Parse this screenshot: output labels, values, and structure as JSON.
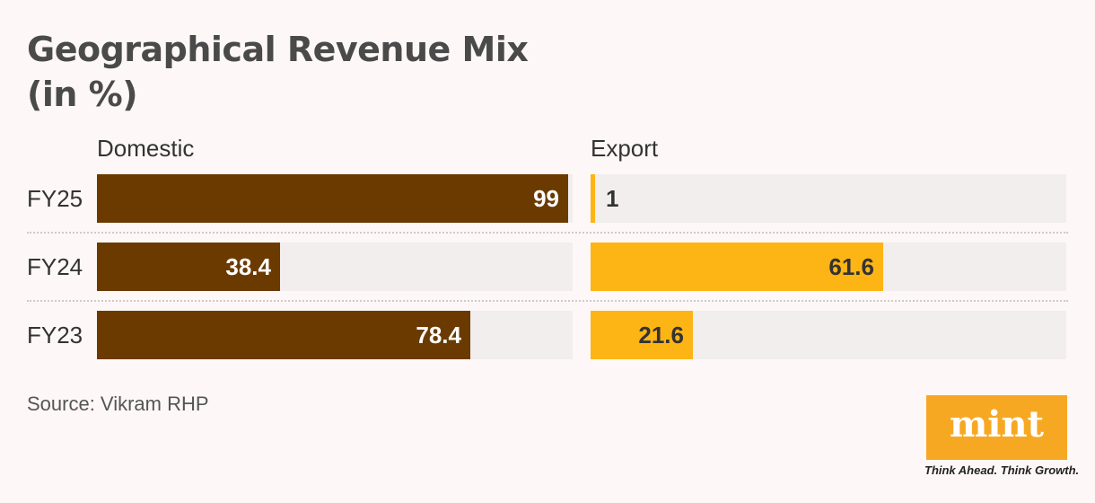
{
  "chart_data": {
    "type": "bar",
    "title": "Geographical Revenue Mix",
    "subtitle": "(in %)",
    "categories": [
      "FY25",
      "FY24",
      "FY23"
    ],
    "series": [
      {
        "name": "Domestic",
        "values": [
          99,
          38.4,
          78.4
        ],
        "color": "#6b3a00"
      },
      {
        "name": "Export",
        "values": [
          1,
          61.6,
          21.6
        ],
        "color": "#fdb515"
      }
    ],
    "xlim": [
      0,
      100
    ],
    "orientation": "horizontal",
    "grid": false,
    "source": "Source: Vikram RHP"
  },
  "brand": {
    "logo_text": "mint",
    "tagline": "Think Ahead. Think Growth.",
    "logo_color": "#f7a823"
  }
}
